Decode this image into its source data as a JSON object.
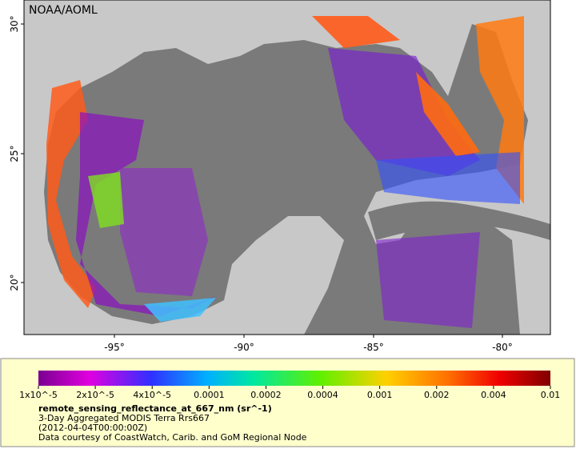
{
  "map": {
    "credit": "NOAA/AOML",
    "lat_labels": [
      "30°",
      "25°",
      "20°"
    ],
    "lon_labels": [
      "-95°",
      "-90°",
      "-85°",
      "-80°"
    ]
  },
  "legend": {
    "ticks": [
      "1x10^-5",
      "2x10^-5",
      "4x10^-5",
      "0.0001",
      "0.0002",
      "0.0004",
      "0.001",
      "0.002",
      "0.004",
      "0.01"
    ],
    "variable": "remote_sensing_reflectance_at_667_nm (sr^-1)",
    "lines": [
      "3-Day Aggregated MODIS Terra Rrs667",
      "(2012-04-04T00:00:00Z)",
      "Data courtesy of CoastWatch, Carib. and GoM Regional Node"
    ]
  }
}
